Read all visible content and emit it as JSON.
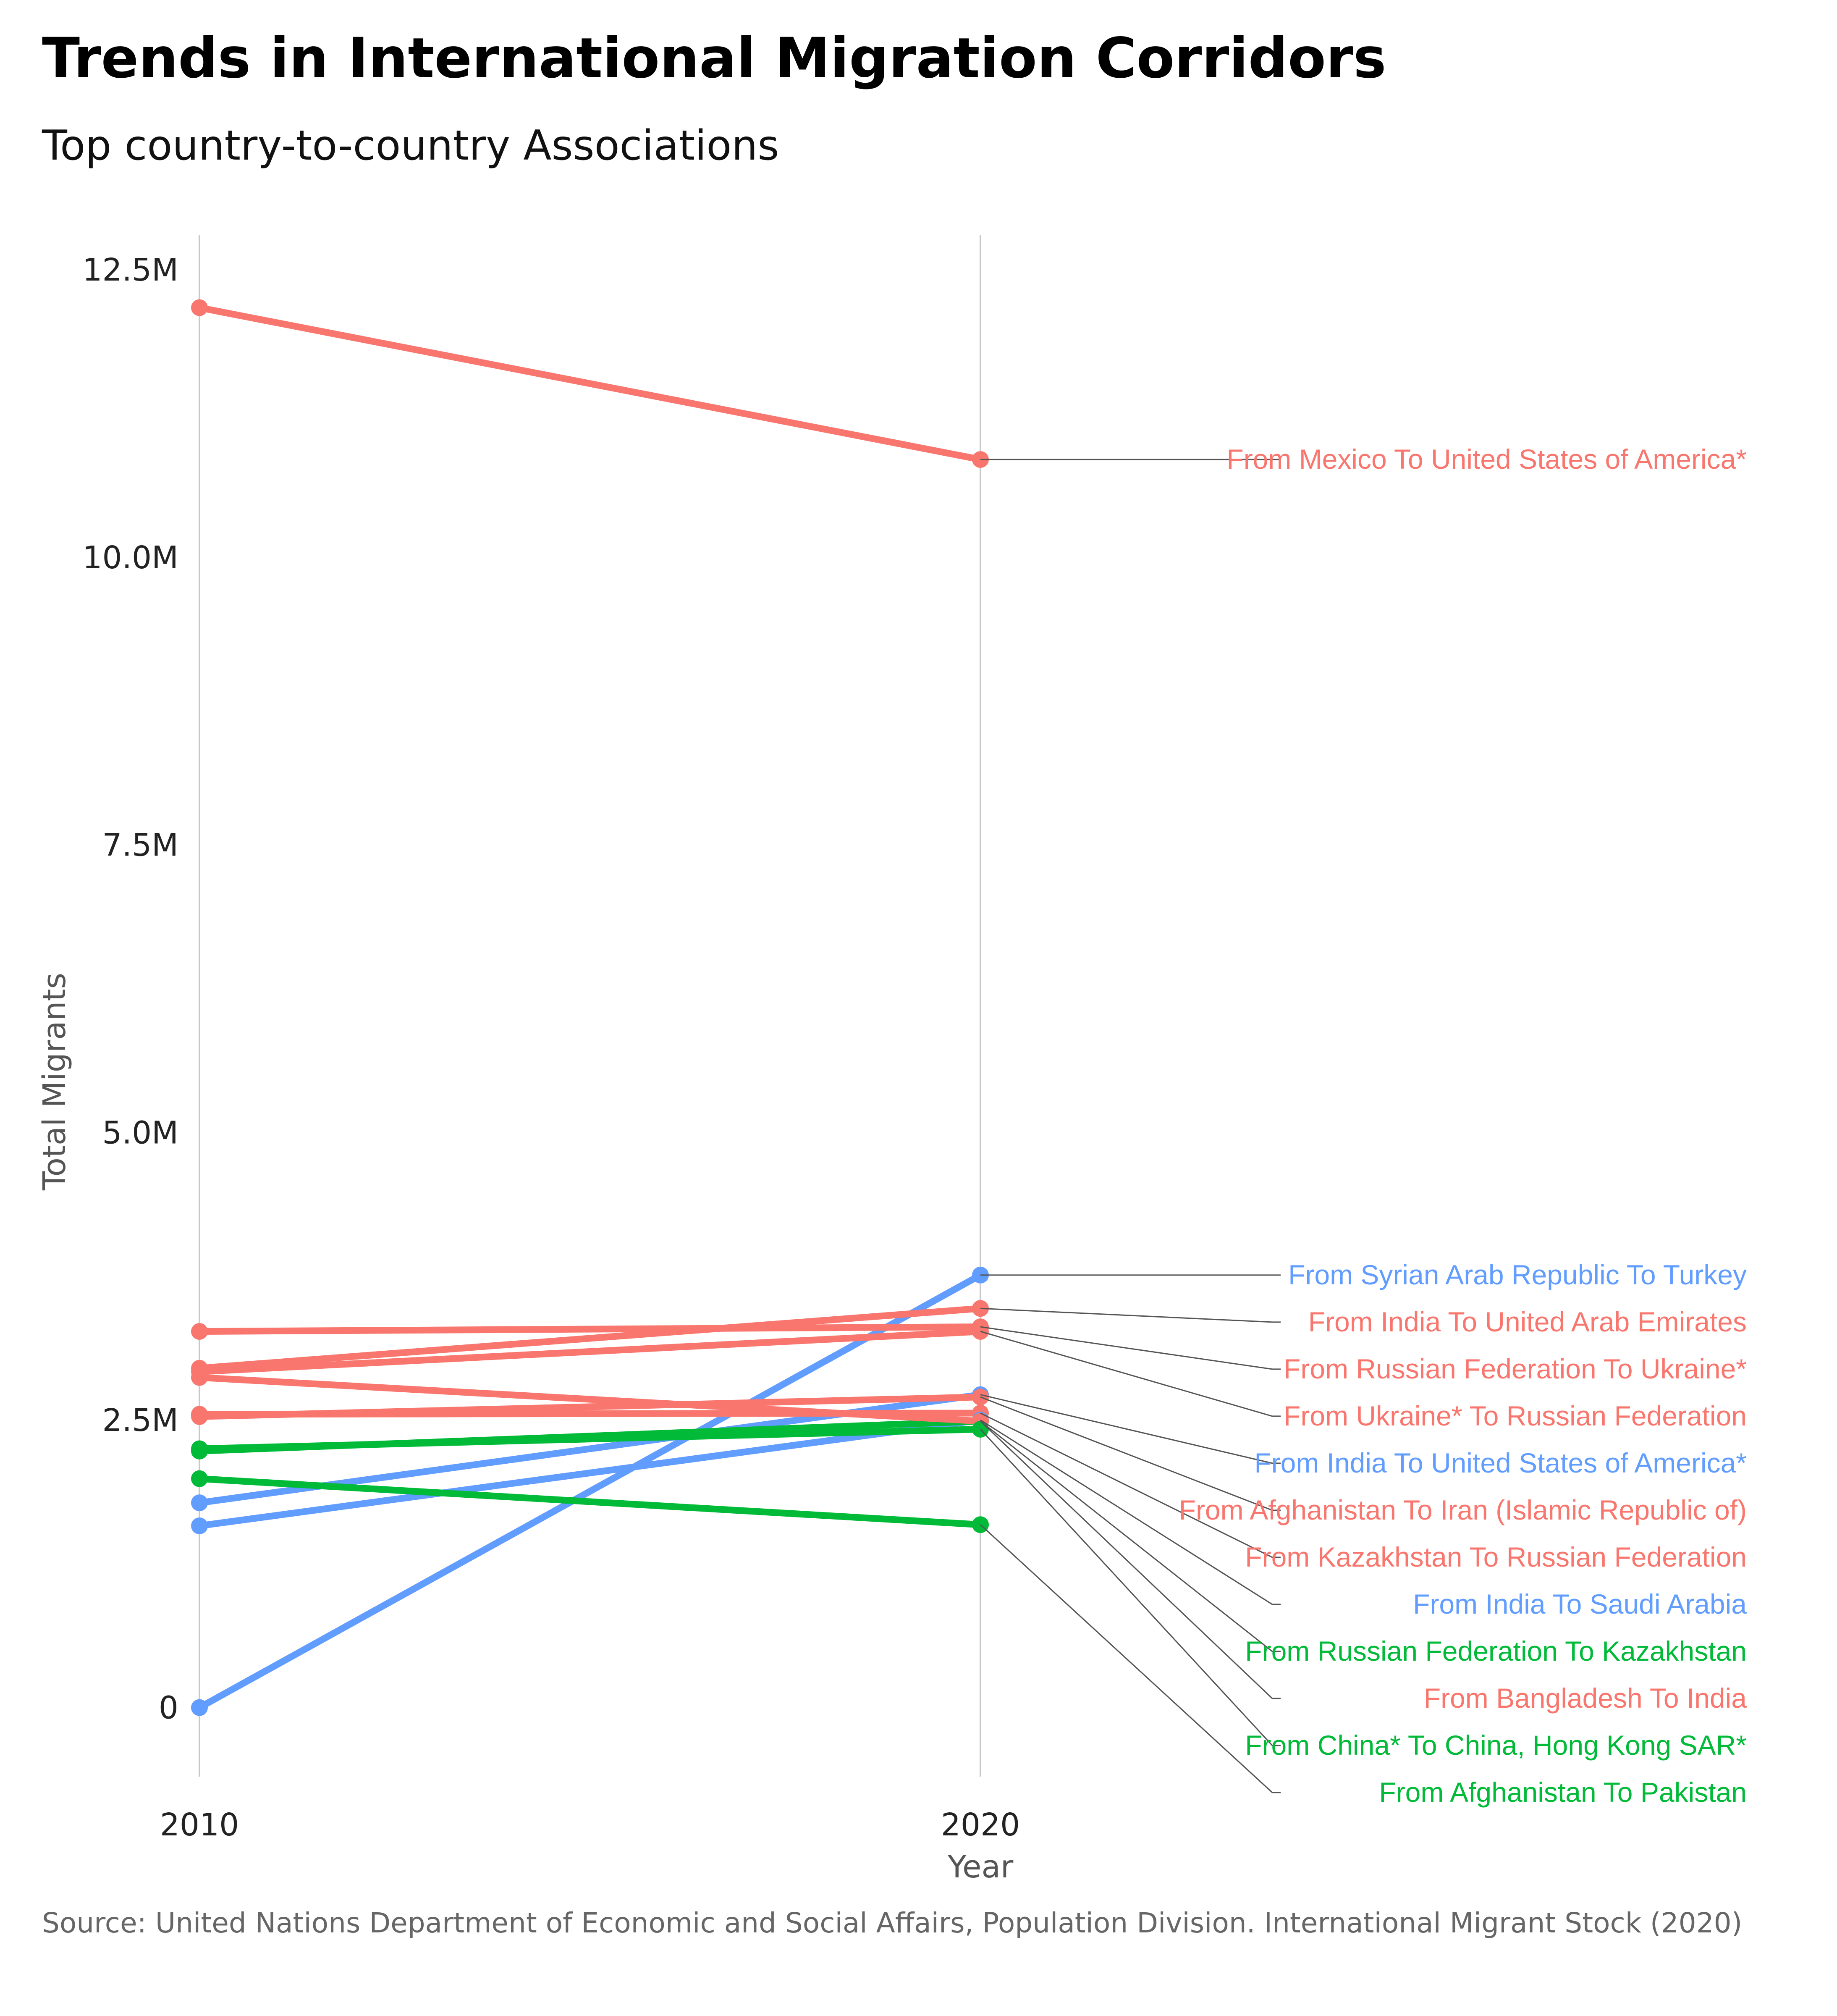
{
  "title": "Trends in International Migration Corridors",
  "subtitle": "Top country-to-country Associations",
  "source": "Source: United Nations Department of Economic and Social Affairs, Population Division. International Migrant Stock (2020)",
  "colors": {
    "red": "#F8766D",
    "blue": "#619CFF",
    "green": "#00BA38",
    "connector": "#555555",
    "grid": "#c8c8c8"
  },
  "chart_data": {
    "type": "line",
    "title": "Trends in International Migration Corridors",
    "subtitle": "Top country-to-country Associations",
    "xlabel": "Year",
    "ylabel": "Total Migrants",
    "x": [
      2010,
      2020
    ],
    "x_tick_labels": [
      "2010",
      "2020"
    ],
    "y_ticks": [
      0,
      2500000,
      5000000,
      7500000,
      10000000,
      12500000
    ],
    "y_tick_labels": [
      "0",
      "2.5M",
      "5.0M",
      "7.5M",
      "10.0M",
      "12.5M"
    ],
    "ylim": [
      -600000,
      12800000
    ],
    "grid": "vertical line at 2020 only",
    "legend": "none (direct labels at right)",
    "series": [
      {
        "name": "From Mexico To United States of America*",
        "color": "red",
        "values": [
          12170000,
          10850000
        ]
      },
      {
        "name": "From Syrian Arab Republic To Turkey",
        "color": "blue",
        "values": [
          0,
          3760000
        ]
      },
      {
        "name": "From India To United Arab Emirates",
        "color": "red",
        "values": [
          2950000,
          3470000
        ]
      },
      {
        "name": "From Russian Federation To Ukraine*",
        "color": "red",
        "values": [
          3270000,
          3310000
        ]
      },
      {
        "name": "From Ukraine* To Russian Federation",
        "color": "red",
        "values": [
          2920000,
          3270000
        ]
      },
      {
        "name": "From India To United States of America*",
        "color": "blue",
        "values": [
          1780000,
          2720000
        ]
      },
      {
        "name": "From Afghanistan To Iran (Islamic Republic of)",
        "color": "red",
        "values": [
          2530000,
          2700000
        ]
      },
      {
        "name": "From Kazakhstan To Russian Federation",
        "color": "red",
        "values": [
          2550000,
          2560000
        ]
      },
      {
        "name": "From India To Saudi Arabia",
        "color": "blue",
        "values": [
          1580000,
          2500000
        ]
      },
      {
        "name": "From Russian Federation To Kazakhstan",
        "color": "green",
        "values": [
          2230000,
          2490000
        ]
      },
      {
        "name": "From Bangladesh To India",
        "color": "red",
        "values": [
          2870000,
          2490000
        ]
      },
      {
        "name": "From China* To China, Hong Kong SAR*",
        "color": "green",
        "values": [
          2250000,
          2420000
        ]
      },
      {
        "name": "From Afghanistan To Pakistan",
        "color": "green",
        "values": [
          1990000,
          1590000
        ]
      }
    ]
  }
}
